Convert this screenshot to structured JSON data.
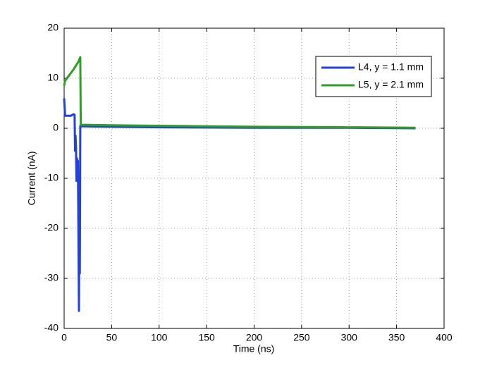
{
  "chart_data": {
    "type": "line",
    "xlabel": "Time (ns)",
    "ylabel": "Current (nA)",
    "xlim": [
      0,
      400
    ],
    "xticks": [
      0,
      50,
      100,
      150,
      200,
      250,
      300,
      350,
      400
    ],
    "ylim": [
      -40,
      20
    ],
    "yticks": [
      -40,
      -30,
      -20,
      -10,
      0,
      10,
      20
    ],
    "grid": true,
    "legend": "upper right",
    "series": [
      {
        "name": "L4, y = 1.1 mm",
        "color": "#2140e6",
        "x": [
          0,
          1,
          2,
          7,
          10,
          11,
          11.5,
          12,
          12.5,
          13,
          13.5,
          14,
          14.5,
          15,
          15.6,
          16,
          16.5,
          17,
          17.5,
          50,
          100,
          200,
          300,
          370
        ],
        "values": [
          6,
          2.5,
          2.5,
          2.5,
          2.8,
          2.7,
          -4.5,
          -1.5,
          -4,
          -10.5,
          -6,
          -10,
          -6.5,
          -20,
          -36.5,
          -20,
          -29,
          0.5,
          0.4,
          0.3,
          0.2,
          0.1,
          0.1,
          0
        ]
      },
      {
        "name": "L5, y = 2.1 mm",
        "color": "#2aa21f",
        "x": [
          0,
          1,
          5,
          10,
          15,
          17,
          17.5,
          50,
          100,
          200,
          300,
          370
        ],
        "values": [
          8.5,
          9.5,
          10.5,
          11.8,
          13.3,
          14.2,
          0.7,
          0.6,
          0.5,
          0.3,
          0.2,
          0.1
        ]
      }
    ]
  }
}
